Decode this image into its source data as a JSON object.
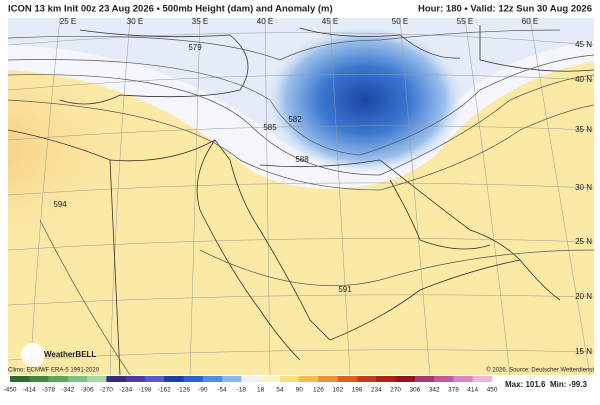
{
  "header": {
    "title": "ICON 13 km Init 00z 23 Aug 2026 • 500mb Height (dam) and Anomaly (m)",
    "valid": "Hour: 180 • Valid: 12z Sun 30 Aug 2026"
  },
  "map": {
    "longitude_labels": [
      "25 E",
      "30 E",
      "35 E",
      "40 E",
      "45 E",
      "50 E",
      "55 E",
      "60 E"
    ],
    "latitude_labels": [
      "45 N",
      "40 N",
      "35 N",
      "30 N",
      "25 N",
      "20 N",
      "15 N"
    ],
    "contour_labels": [
      "579",
      "582",
      "585",
      "588",
      "591",
      "594"
    ],
    "logo": "WeatherBELL"
  },
  "footer": {
    "climo": "Climo: ECMWF ERA-5 1991-2020",
    "source": "© 2026. Source: Deutscher Wetterdienst",
    "max": "Max: 101.6",
    "min": "Min: -99.3"
  },
  "colorbar": {
    "ticks": [
      -450,
      -414,
      -378,
      -342,
      -306,
      -270,
      -234,
      -198,
      -162,
      -126,
      -90,
      -54,
      -18,
      18,
      54,
      90,
      126,
      162,
      198,
      234,
      270,
      306,
      342,
      378,
      414,
      450
    ],
    "colors": [
      "#2e6b2e",
      "#3f8a3f",
      "#5aa85a",
      "#7fc27f",
      "#a8d8a8",
      "#3a2a7a",
      "#4a3fa0",
      "#5a5ac8",
      "#1f3f9f",
      "#2f62c8",
      "#4f8ee0",
      "#86b6ee",
      "#eef3fb",
      "#fbf3c4",
      "#f8dc86",
      "#f2b957",
      "#ea8d3c",
      "#de5f2c",
      "#c83a24",
      "#a8221e",
      "#8a1820",
      "#a03a6a",
      "#c05a9a",
      "#d886c0",
      "#ecb6de"
    ]
  }
}
